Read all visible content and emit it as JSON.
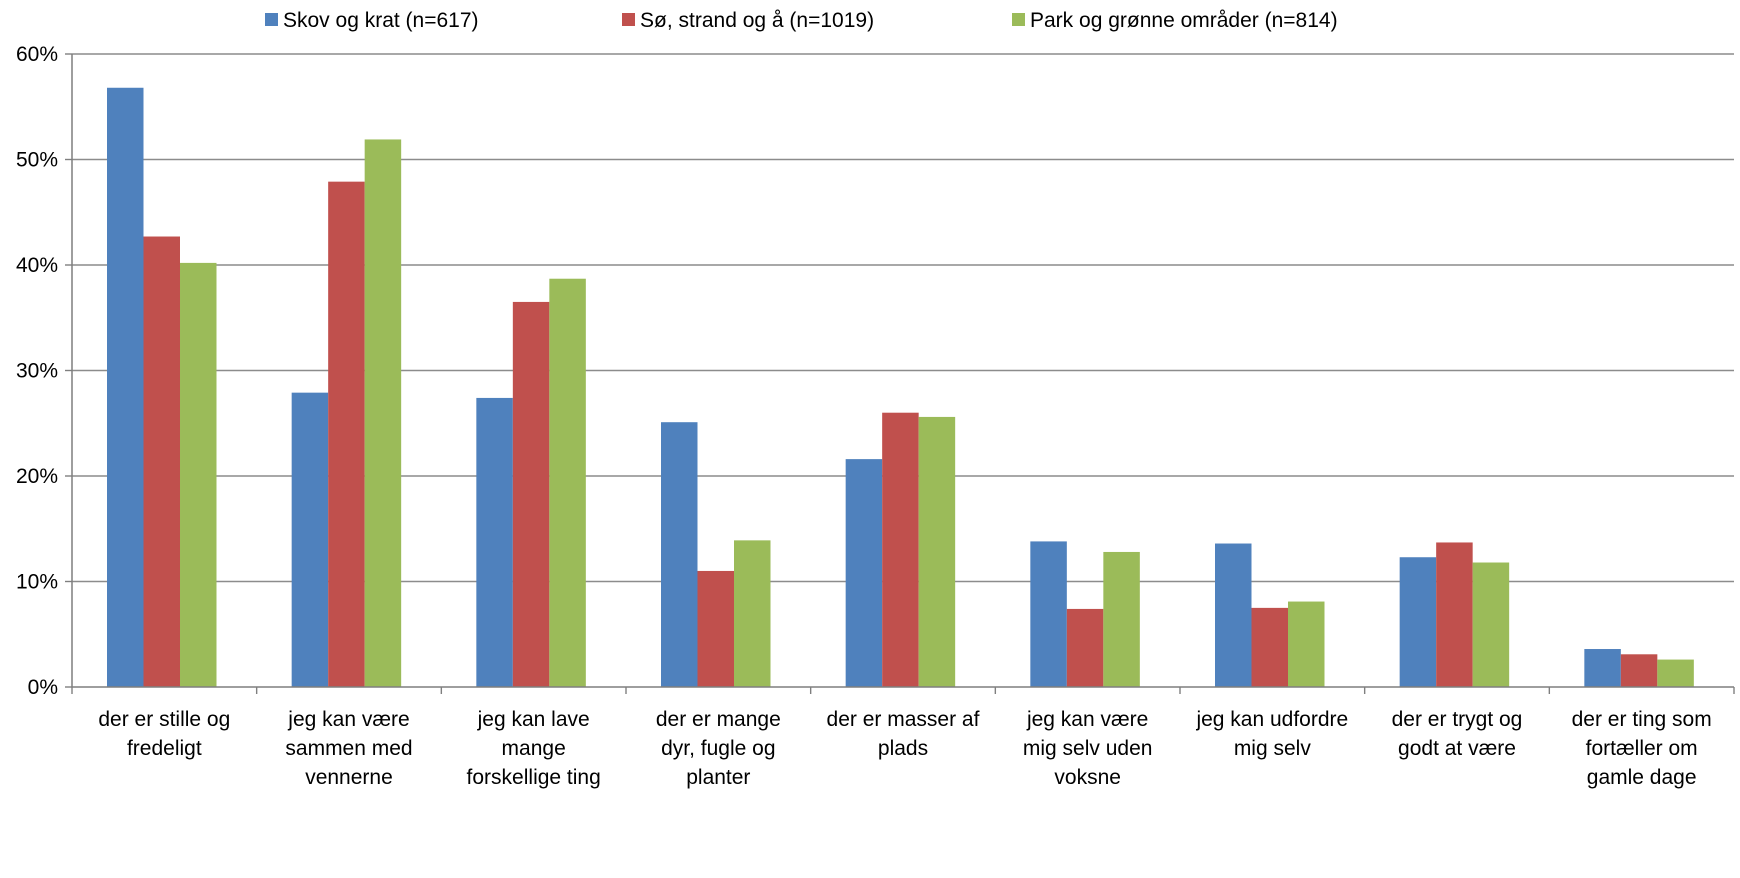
{
  "chart_data": {
    "type": "bar",
    "title": "",
    "xlabel": "",
    "ylabel": "",
    "ylim": [
      0,
      60
    ],
    "yticks": [
      0,
      10,
      20,
      30,
      40,
      50,
      60
    ],
    "ytick_labels": [
      "0%",
      "10%",
      "20%",
      "30%",
      "40%",
      "50%",
      "60%"
    ],
    "grid": true,
    "legend_position": "top",
    "categories": [
      [
        "der er stille og",
        "fredeligt"
      ],
      [
        "jeg kan være",
        "sammen med",
        "vennerne"
      ],
      [
        "jeg kan lave",
        "mange",
        "forskellige ting"
      ],
      [
        "der er mange",
        "dyr, fugle og",
        "planter"
      ],
      [
        "der er masser af",
        "plads"
      ],
      [
        "jeg kan være",
        "mig selv uden",
        "voksne"
      ],
      [
        "jeg kan udfordre",
        "mig selv"
      ],
      [
        "der er trygt og",
        "godt at være"
      ],
      [
        "der er ting som",
        "fortæller om",
        "gamle dage"
      ]
    ],
    "series": [
      {
        "name": "Skov og krat (n=617)",
        "color": "#4F81BD",
        "values": [
          56.8,
          27.9,
          27.4,
          25.1,
          21.6,
          13.8,
          13.6,
          12.3,
          3.6
        ]
      },
      {
        "name": "Sø, strand og å (n=1019)",
        "color": "#C0504D",
        "values": [
          42.7,
          47.9,
          36.5,
          11.0,
          26.0,
          7.4,
          7.5,
          13.7,
          3.1
        ]
      },
      {
        "name": "Park og grønne områder (n=814)",
        "color": "#9BBB59",
        "values": [
          40.2,
          51.9,
          38.7,
          13.9,
          25.6,
          12.8,
          8.1,
          11.8,
          2.6
        ]
      }
    ]
  }
}
